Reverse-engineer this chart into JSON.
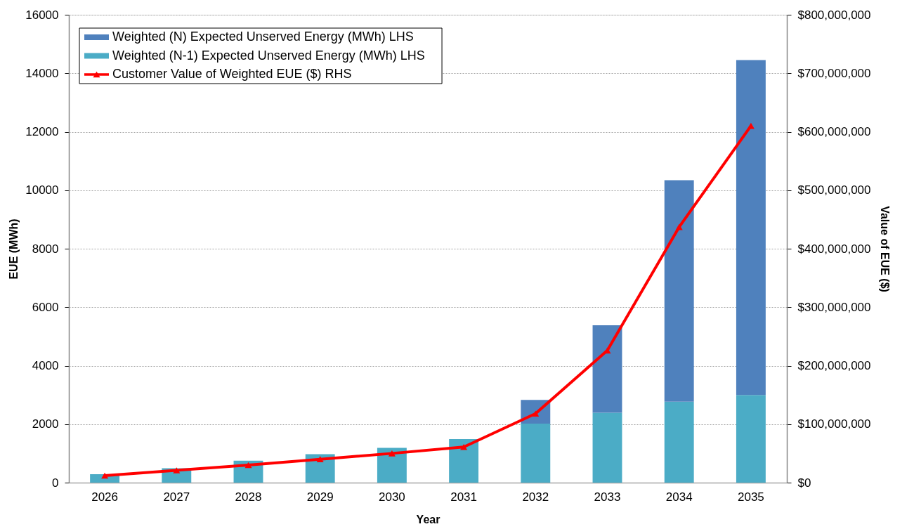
{
  "chart_data": {
    "type": "bar",
    "stacked": true,
    "xlabel": "Year",
    "ylabel": "EUE (MWh)",
    "y2label": "Value of EUE ($)",
    "categories": [
      "2026",
      "2027",
      "2028",
      "2029",
      "2030",
      "2031",
      "2032",
      "2033",
      "2034",
      "2035"
    ],
    "series": [
      {
        "name": "Weighted (N-1) Expected Unserved Energy (MWh) LHS",
        "color": "#4bacc6",
        "values": [
          290,
          490,
          750,
          970,
          1190,
          1490,
          2020,
          2390,
          2770,
          3000
        ]
      },
      {
        "name": "Weighted (N) Expected Unserved Energy (MWh) LHS",
        "color": "#4f81bd",
        "values": [
          null,
          null,
          null,
          null,
          null,
          null,
          810,
          2990,
          7570,
          11450
        ]
      },
      {
        "name": "Customer Value of Weighted EUE ($) RHS",
        "type": "line",
        "axis": "y2",
        "color": "#ff0000",
        "values": [
          12000000,
          21000000,
          30000000,
          40000000,
          50000000,
          61000000,
          118000000,
          226000000,
          437000000,
          610000000
        ]
      }
    ],
    "ylim": [
      0,
      16000
    ],
    "yticks": [
      0,
      2000,
      4000,
      6000,
      8000,
      10000,
      12000,
      14000,
      16000
    ],
    "y2lim": [
      0,
      800000000
    ],
    "y2ticks": [
      {
        "value": 0,
        "label": "$0"
      },
      {
        "value": 100000000,
        "label": "$100,000,000"
      },
      {
        "value": 200000000,
        "label": "$200,000,000"
      },
      {
        "value": 300000000,
        "label": "$300,000,000"
      },
      {
        "value": 400000000,
        "label": "$400,000,000"
      },
      {
        "value": 500000000,
        "label": "$500,000,000"
      },
      {
        "value": 600000000,
        "label": "$600,000,000"
      },
      {
        "value": 700000000,
        "label": "$700,000,000"
      },
      {
        "value": 800000000,
        "label": "$800,000,000"
      }
    ],
    "grid": "y",
    "legend": "top left",
    "marker": "triangle"
  }
}
